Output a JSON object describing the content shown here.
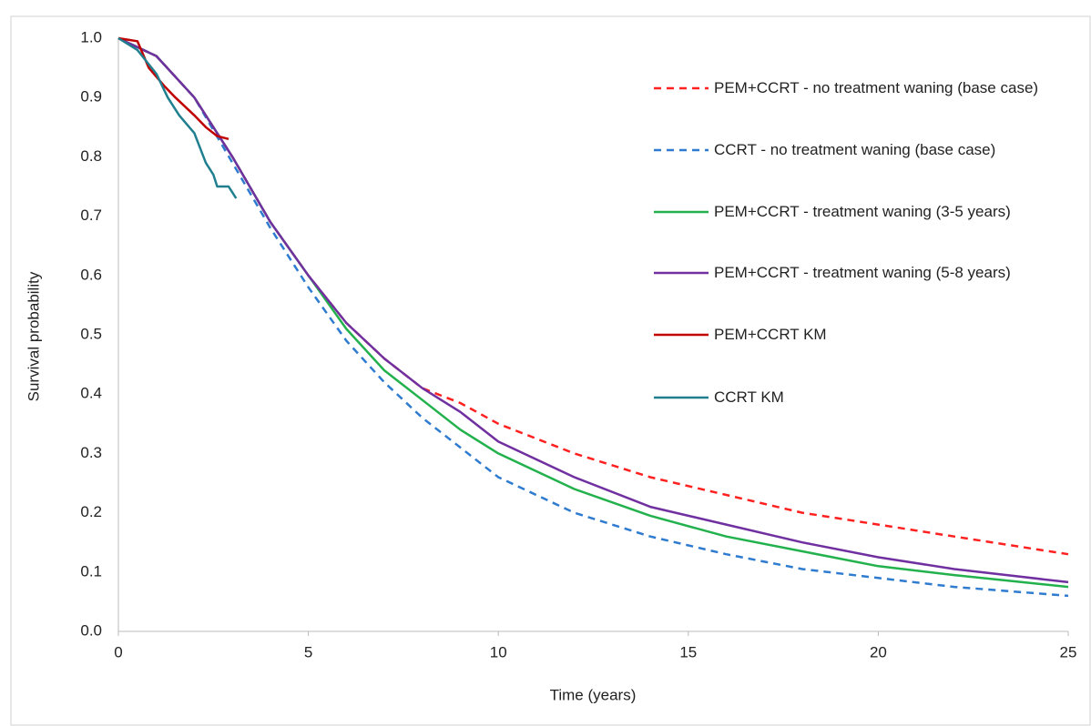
{
  "chart_data": {
    "type": "line",
    "x_label": "Time (years)",
    "y_label": "Survival probability",
    "xlim": [
      0,
      25
    ],
    "xticks": [
      0,
      5,
      10,
      15,
      20,
      25
    ],
    "ylim": [
      0,
      1
    ],
    "yticks": [
      {
        "value": 0,
        "label": "0.0"
      },
      0.1,
      0.2,
      0.3,
      0.4,
      0.5,
      0.6,
      0.7,
      0.8,
      0.9,
      {
        "value": 1,
        "label": "1.0"
      }
    ],
    "grid": false,
    "legend": "right",
    "series": [
      {
        "name": "PEM+CCRT - no treatment waning (base case)",
        "color": "#ff2020",
        "dash": true,
        "x": [
          0,
          1,
          2,
          3,
          4,
          5,
          6,
          7,
          8,
          9,
          10,
          12,
          14,
          16,
          18,
          20,
          22,
          25
        ],
        "values": [
          1.0,
          0.97,
          0.9,
          0.8,
          0.69,
          0.6,
          0.52,
          0.46,
          0.41,
          0.385,
          0.35,
          0.3,
          0.26,
          0.23,
          0.2,
          0.18,
          0.16,
          0.13
        ]
      },
      {
        "name": "CCRT - no treatment waning (base case)",
        "color": "#2e7bcf",
        "dash": true,
        "x": [
          0,
          1,
          2,
          3,
          4,
          5,
          6,
          7,
          8,
          9,
          10,
          12,
          14,
          16,
          18,
          20,
          22,
          25
        ],
        "values": [
          1.0,
          0.97,
          0.9,
          0.79,
          0.68,
          0.58,
          0.49,
          0.42,
          0.36,
          0.31,
          0.26,
          0.2,
          0.16,
          0.13,
          0.105,
          0.09,
          0.075,
          0.06
        ]
      },
      {
        "name": "PEM+CCRT - treatment waning (3-5 years)",
        "color": "#22b14c",
        "dash": false,
        "x": [
          0,
          1,
          2,
          3,
          4,
          5,
          6,
          7,
          8,
          9,
          10,
          12,
          14,
          16,
          18,
          20,
          22,
          25
        ],
        "values": [
          1.0,
          0.97,
          0.9,
          0.8,
          0.69,
          0.6,
          0.51,
          0.44,
          0.39,
          0.34,
          0.3,
          0.24,
          0.195,
          0.16,
          0.135,
          0.11,
          0.095,
          0.075
        ]
      },
      {
        "name": "PEM+CCRT - treatment waning (5-8 years)",
        "color": "#7030a0",
        "dash": false,
        "x": [
          0,
          1,
          2,
          3,
          4,
          5,
          6,
          7,
          8,
          9,
          10,
          12,
          14,
          16,
          18,
          20,
          22,
          25
        ],
        "values": [
          1.0,
          0.97,
          0.9,
          0.8,
          0.69,
          0.6,
          0.52,
          0.46,
          0.41,
          0.37,
          0.32,
          0.26,
          0.21,
          0.18,
          0.15,
          0.125,
          0.105,
          0.083
        ]
      },
      {
        "name": "PEM+CCRT KM",
        "color": "#c00000",
        "dash": false,
        "x": [
          0,
          0.5,
          0.8,
          1.2,
          1.5,
          2,
          2.3,
          2.6,
          2.9
        ],
        "values": [
          1.0,
          0.995,
          0.95,
          0.92,
          0.9,
          0.87,
          0.85,
          0.835,
          0.83
        ]
      },
      {
        "name": "CCRT KM",
        "color": "#1f7f8f",
        "dash": false,
        "x": [
          0,
          0.5,
          1,
          1.3,
          1.6,
          2,
          2.3,
          2.5,
          2.6,
          2.9,
          3.1
        ],
        "values": [
          1.0,
          0.98,
          0.94,
          0.9,
          0.87,
          0.84,
          0.79,
          0.77,
          0.75,
          0.75,
          0.73
        ]
      }
    ]
  }
}
